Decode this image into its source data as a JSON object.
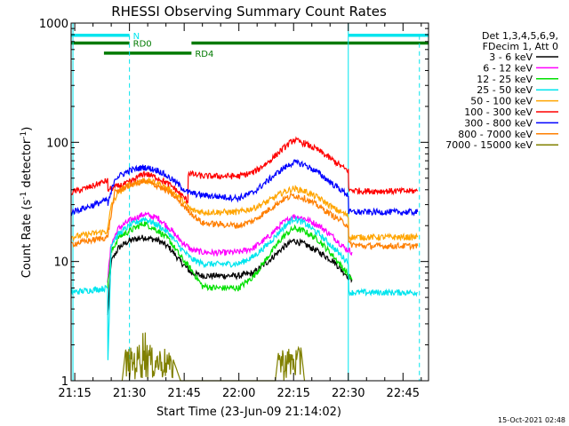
{
  "chart_data": {
    "type": "line",
    "title": "RHESSI Observing Summary Count Rates",
    "xlabel": "Start Time (23-Jun-09 21:14:02)",
    "ylabel_main": "Count Rate (s",
    "ylabel_sup1": "-1",
    "ylabel_mid": " detector",
    "ylabel_sup2": "-1",
    "ylabel_end": ")",
    "x_unit": "minutes since 21:14:02",
    "xlim": [
      0,
      98
    ],
    "ylim": [
      1,
      1000
    ],
    "yscale": "log",
    "x_ticks": [
      {
        "label": "21:15",
        "value": 1
      },
      {
        "label": "21:30",
        "value": 16
      },
      {
        "label": "21:45",
        "value": 31
      },
      {
        "label": "22:00",
        "value": 46
      },
      {
        "label": "22:15",
        "value": 61
      },
      {
        "label": "22:30",
        "value": 76
      },
      {
        "label": "22:45",
        "value": 91
      }
    ],
    "y_ticks": [
      {
        "label": "1",
        "value": 1
      },
      {
        "label": "10",
        "value": 10
      },
      {
        "label": "100",
        "value": 100
      },
      {
        "label": "1000",
        "value": 1000
      }
    ],
    "legend_header": [
      "Det 1,3,4,5,6,9,",
      "FDecim 1, Att 0"
    ],
    "legend_position": "right",
    "footer_date": "15-Oct-2021 02:48",
    "flags": [
      {
        "label": "N",
        "color": "#00e5ee",
        "level": 790,
        "segments": [
          [
            0,
            16
          ],
          [
            76,
            98
          ]
        ]
      },
      {
        "label": "RD0",
        "color": "#007a00",
        "level": 680,
        "segments": [
          [
            0,
            16
          ],
          [
            33,
            98
          ]
        ]
      },
      {
        "label": "RD4",
        "color": "#007a00",
        "level": 560,
        "segments": [
          [
            9,
            33
          ]
        ]
      }
    ],
    "vlines_solid": [
      0.5,
      76
    ],
    "vlines_dashed": [
      16,
      95.5
    ],
    "series": [
      {
        "name": "3 - 6 keV",
        "color": "#000000",
        "x": [
          10,
          11,
          13,
          16,
          20,
          24,
          27,
          30,
          33,
          36,
          40,
          46,
          50,
          54,
          58,
          61,
          64,
          68,
          72,
          75,
          77
        ],
        "y": [
          3.5,
          10,
          13,
          15,
          16,
          15,
          13,
          10,
          8,
          7.6,
          7.6,
          7.6,
          8,
          10,
          13,
          15,
          14,
          12,
          10,
          8,
          7
        ]
      },
      {
        "name": "6 - 12 keV",
        "color": "#ff00ff",
        "x": [
          10,
          11,
          13,
          16,
          20,
          24,
          27,
          30,
          33,
          36,
          40,
          46,
          50,
          54,
          58,
          61,
          64,
          68,
          72,
          75,
          77
        ],
        "y": [
          7,
          14,
          19,
          22,
          25,
          23,
          19,
          15,
          12.5,
          12,
          11.8,
          12,
          13,
          16,
          21,
          24,
          23,
          20,
          16,
          13,
          12
        ]
      },
      {
        "name": "12 - 25 keV",
        "color": "#00e000",
        "x": [
          10,
          11,
          13,
          16,
          20,
          24,
          27,
          30,
          33,
          36,
          40,
          46,
          50,
          54,
          58,
          61,
          64,
          68,
          72,
          75,
          77
        ],
        "y": [
          6,
          12,
          16,
          18,
          21,
          18,
          15,
          11,
          8.5,
          6.2,
          6,
          6,
          7.5,
          11,
          16,
          19,
          18,
          15,
          11,
          8.5,
          7
        ]
      },
      {
        "name": "25 - 50 keV",
        "color": "#00e5ee",
        "x": [
          0,
          10,
          10.1,
          11,
          13,
          16,
          20,
          24,
          27,
          30,
          33,
          36,
          40,
          46,
          50,
          54,
          58,
          61,
          64,
          68,
          72,
          75,
          76,
          76.1,
          80,
          90,
          95
        ],
        "y": [
          5.5,
          6,
          1.5,
          14,
          17,
          20,
          23,
          20,
          17,
          13,
          10.5,
          9.6,
          9.5,
          9.6,
          11,
          14,
          19,
          23,
          21,
          17,
          13,
          10.5,
          10,
          5.5,
          5.5,
          5.5,
          5.5
        ]
      },
      {
        "name": "50 - 100 keV",
        "color": "#ffa500",
        "x": [
          0,
          10,
          11,
          13,
          16,
          20,
          24,
          27,
          30,
          33,
          36,
          40,
          46,
          50,
          54,
          58,
          61,
          64,
          68,
          72,
          75,
          76,
          76.1,
          80,
          90,
          95
        ],
        "y": [
          16,
          18,
          30,
          38,
          44,
          48,
          45,
          40,
          34,
          27,
          26,
          26,
          26,
          28,
          32,
          38,
          41,
          39,
          34,
          28,
          25,
          24,
          16,
          16,
          16,
          16
        ]
      },
      {
        "name": "100 - 300 keV",
        "color": "#ff0000",
        "x": [
          0,
          5,
          10,
          10.1,
          12,
          16,
          20,
          24,
          28,
          32,
          32.1,
          36,
          46,
          50,
          54,
          58,
          61,
          64,
          68,
          72,
          75,
          76,
          76.1,
          80,
          90,
          95
        ],
        "y": [
          38,
          42,
          48,
          40,
          42,
          46,
          55,
          50,
          42,
          32,
          55,
          52,
          52,
          56,
          68,
          88,
          105,
          98,
          85,
          70,
          60,
          58,
          40,
          39,
          39,
          39
        ]
      },
      {
        "name": "300 - 800 keV",
        "color": "#0000ff",
        "x": [
          0,
          5,
          10,
          10.1,
          12,
          16,
          20,
          24,
          28,
          32,
          36,
          46,
          50,
          54,
          58,
          61,
          64,
          68,
          72,
          75,
          76,
          76.1,
          80,
          90,
          95
        ],
        "y": [
          26,
          29,
          33,
          30,
          50,
          58,
          62,
          58,
          48,
          38,
          36,
          34,
          38,
          48,
          60,
          68,
          65,
          55,
          44,
          38,
          36,
          26,
          26,
          26,
          26
        ]
      },
      {
        "name": "800 - 7000 keV",
        "color": "#ff7f00",
        "x": [
          0,
          10,
          10.1,
          12,
          16,
          20,
          24,
          28,
          32,
          36,
          46,
          50,
          54,
          58,
          61,
          64,
          68,
          72,
          75,
          76,
          76.1,
          80,
          90,
          95
        ],
        "y": [
          14,
          16,
          17,
          38,
          44,
          47,
          43,
          36,
          27,
          21,
          20,
          22,
          27,
          33,
          36,
          34,
          29,
          24,
          21,
          20,
          14,
          13.5,
          13.5,
          13.5
        ]
      },
      {
        "name": "7000 - 15000 keV",
        "color": "#808000",
        "x": [
          14,
          15,
          18,
          20,
          22,
          24,
          26,
          28,
          30,
          56,
          57,
          60,
          62,
          63,
          64
        ],
        "y": [
          1,
          1.9,
          1.9,
          2.9,
          1.9,
          1.9,
          1.9,
          1.5,
          1,
          1,
          1.9,
          1.9,
          1.9,
          1.9,
          1
        ]
      }
    ]
  }
}
